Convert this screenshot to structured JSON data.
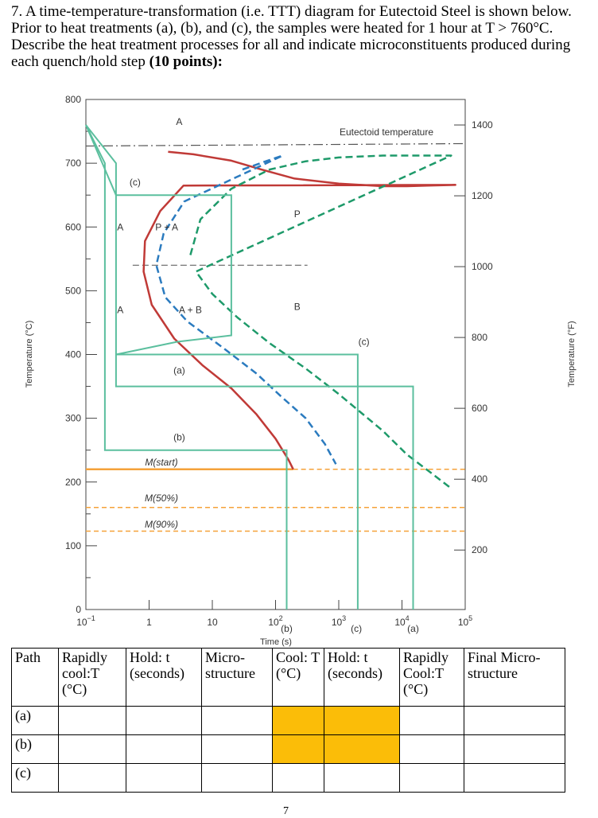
{
  "question": {
    "number": "7.",
    "text": "A time-temperature-transformation (i.e. TTT) diagram for Eutectoid Steel is shown below.  Prior to heat treatments (a), (b), and (c), the samples were heated for 1 hour at T > 760°C.  Describe the heat treatment processes for all and indicate microconstituents produced during each quench/hold step ",
    "points": "(10 points):"
  },
  "chart_data": {
    "type": "line",
    "title": "",
    "xlabel": "Time (s)",
    "ylabel": "Temperature (°C)",
    "ylabel_right": "Temperature (°F)",
    "x_scale": "log",
    "xlim": [
      0.1,
      100000
    ],
    "ylim": [
      0,
      800
    ],
    "x_ticks": [
      {
        "v": 0.1,
        "b": "10",
        "e": "−1"
      },
      {
        "v": 1,
        "b": "1",
        "e": ""
      },
      {
        "v": 10,
        "b": "10",
        "e": ""
      },
      {
        "v": 100,
        "b": "10",
        "e": "2"
      },
      {
        "v": 1000,
        "b": "10",
        "e": "3"
      },
      {
        "v": 10000,
        "b": "10",
        "e": "4"
      },
      {
        "v": 100000,
        "b": "10",
        "e": "5"
      }
    ],
    "y_ticks": [
      "0",
      "100",
      "200",
      "300",
      "400",
      "500",
      "600",
      "700",
      "800"
    ],
    "y_tick_values": [
      0,
      100,
      200,
      300,
      400,
      500,
      600,
      700,
      800
    ],
    "y2_ticks": [
      {
        "label": "200",
        "celsius": 93.3
      },
      {
        "label": "400",
        "celsius": 204.4
      },
      {
        "label": "600",
        "celsius": 315.6
      },
      {
        "label": "800",
        "celsius": 426.7
      },
      {
        "label": "1000",
        "celsius": 537.8
      },
      {
        "label": "1200",
        "celsius": 648.9
      },
      {
        "label": "1400",
        "celsius": 760.0
      }
    ],
    "colors": {
      "teal": "#5bbf9e",
      "red": "#c03a37",
      "blue": "#2b7bbf",
      "green": "#1e9a6a",
      "orange": "#f5a23a",
      "dark": "#555555"
    },
    "eutectoid": {
      "label": "Eutectoid temperature",
      "value": 727
    },
    "martensite_lines": [
      {
        "label": "M(start)",
        "value": 220
      },
      {
        "label": "M(50%)",
        "value": 160
      },
      {
        "label": "M(90%)",
        "value": 123
      }
    ],
    "curves": [
      {
        "name": "transformation-start",
        "color": "red",
        "dash": false,
        "points": [
          [
            2,
            718
          ],
          [
            5,
            714
          ],
          [
            20,
            704
          ],
          [
            60,
            690
          ],
          [
            200,
            676
          ],
          [
            1000,
            668
          ],
          [
            5000,
            664
          ],
          [
            12000,
            664
          ],
          [
            25000,
            665
          ],
          [
            70000,
            666
          ],
          [
            3.5,
            665
          ],
          [
            1.5,
            625
          ],
          [
            0.86,
            578
          ],
          [
            0.82,
            530
          ],
          [
            1.1,
            478
          ],
          [
            2.5,
            425
          ],
          [
            7,
            383
          ],
          [
            20,
            347
          ],
          [
            50,
            306
          ],
          [
            100,
            268
          ],
          [
            160,
            235
          ],
          [
            190,
            220
          ]
        ]
      },
      {
        "name": "transformation-50pct",
        "color": "blue",
        "dash": true,
        "points": [
          [
            30,
            690
          ],
          [
            70,
            703
          ],
          [
            130,
            712
          ],
          [
            3.6,
            640
          ],
          [
            1.7,
            590
          ],
          [
            1.3,
            540
          ],
          [
            1.8,
            490
          ],
          [
            4,
            452
          ],
          [
            15,
            410
          ],
          [
            50,
            370
          ],
          [
            120,
            335
          ],
          [
            300,
            300
          ],
          [
            600,
            260
          ],
          [
            900,
            228
          ]
        ]
      },
      {
        "name": "transformation-end",
        "color": "green",
        "dash": true,
        "points": [
          [
            4.5,
            556
          ],
          [
            6.5,
            612
          ],
          [
            20,
            660
          ],
          [
            80,
            690
          ],
          [
            300,
            703
          ],
          [
            1000,
            709
          ],
          [
            5000,
            712
          ],
          [
            20000,
            712
          ],
          [
            60000,
            712
          ],
          [
            5.5,
            530
          ],
          [
            10,
            495
          ],
          [
            25,
            458
          ],
          [
            80,
            418
          ],
          [
            300,
            378
          ],
          [
            1000,
            338
          ],
          [
            5000,
            280
          ],
          [
            12000,
            243
          ],
          [
            30000,
            213
          ],
          [
            60000,
            190
          ]
        ]
      }
    ],
    "paths": [
      {
        "name": "c",
        "label": "(c)",
        "points": [
          [
            0.1,
            760
          ],
          [
            0.3,
            650
          ],
          [
            20,
            650
          ],
          [
            20,
            430
          ],
          [
            2.8,
            420
          ],
          [
            0.3,
            400
          ],
          [
            2000,
            400
          ],
          [
            2000,
            0
          ]
        ]
      },
      {
        "name": "a",
        "label": "(a)",
        "points": [
          [
            0.1,
            760
          ],
          [
            0.3,
            700
          ],
          [
            0.3,
            350
          ],
          [
            15000,
            350
          ],
          [
            15000,
            0
          ]
        ]
      },
      {
        "name": "b",
        "label": "(b)",
        "points": [
          [
            0.1,
            760
          ],
          [
            0.2,
            700
          ],
          [
            0.2,
            250
          ],
          [
            150,
            250
          ],
          [
            150,
            0
          ]
        ]
      }
    ],
    "region_labels": [
      {
        "text": "A",
        "x": 3,
        "y": 760
      },
      {
        "text": "A",
        "x": 0.35,
        "y": 595
      },
      {
        "text": "A",
        "x": 0.35,
        "y": 465
      },
      {
        "text": "P + A",
        "x": 1.9,
        "y": 595
      },
      {
        "text": "A + B",
        "x": 4.5,
        "y": 465
      },
      {
        "text": "P",
        "x": 220,
        "y": 615
      },
      {
        "text": "B",
        "x": 220,
        "y": 470
      },
      {
        "text": "(c)",
        "x": 0.6,
        "y": 665
      },
      {
        "text": "(c)",
        "x": 2500,
        "y": 415
      },
      {
        "text": "(a)",
        "x": 3,
        "y": 370
      },
      {
        "text": "(b)",
        "x": 3,
        "y": 265
      },
      {
        "text": "(b)",
        "x": 150,
        "y": -35
      },
      {
        "text": "(c)",
        "x": 1900,
        "y": -35
      },
      {
        "text": "(a)",
        "x": 15000,
        "y": -35
      }
    ]
  },
  "table": {
    "headers": [
      "Path",
      "Rapidly cool:T (°C)",
      "Hold: t (seconds)",
      "Micro-structure",
      "Cool: T (°C)",
      "Hold: t (seconds)",
      "Rapidly Cool:T (°C)",
      "Final Micro-structure"
    ],
    "rows": [
      {
        "path": "(a)"
      },
      {
        "path": "(b)"
      },
      {
        "path": "(c)"
      }
    ],
    "highlight_color": "#fbbd08"
  },
  "page_number": "7"
}
